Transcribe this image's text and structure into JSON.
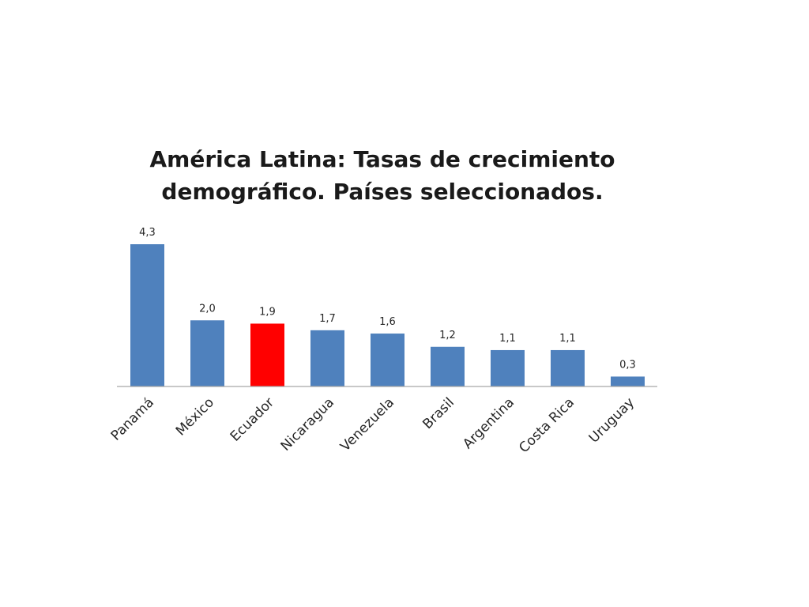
{
  "chart_data": {
    "type": "bar",
    "title_lines": [
      "América Latina: Tasas de crecimiento",
      "demográfico. Países seleccionados."
    ],
    "categories": [
      "Panamá",
      "México",
      "Ecuador",
      "Nicaragua",
      "Venezuela",
      "Brasil",
      "Argentina",
      "Costa Rica",
      "Uruguay"
    ],
    "values": [
      4.3,
      2.0,
      1.9,
      1.7,
      1.6,
      1.2,
      1.1,
      1.1,
      0.3
    ],
    "value_labels": [
      "4,3",
      "2,0",
      "1,9",
      "1,7",
      "1,6",
      "1,2",
      "1,1",
      "1,1",
      "0,3"
    ],
    "ylim": [
      0,
      4.3
    ],
    "grid": false,
    "legend": "none",
    "colors": {
      "default_bar": "#4f81bd",
      "highlight_bar": "#ff0000",
      "axis": "#a6a6a6"
    },
    "highlight_category": "Ecuador"
  }
}
